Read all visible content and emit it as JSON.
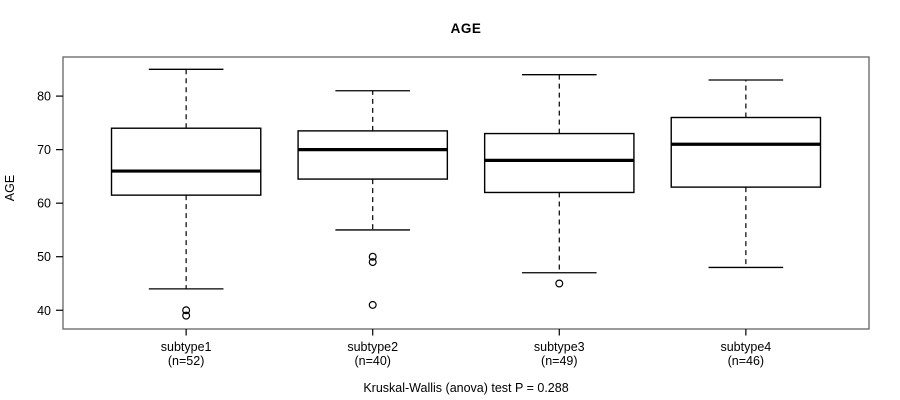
{
  "chart_data": {
    "type": "boxplot",
    "title": "AGE",
    "ylabel": "AGE",
    "footer": "Kruskal-Wallis (anova) test P = 0.288",
    "y_ticks": [
      40,
      50,
      60,
      70,
      80
    ],
    "ylim": [
      36.5,
      87.3
    ],
    "xlim": [
      0.34,
      4.66
    ],
    "grid": false,
    "legend": "none",
    "colors": {
      "box_fill": "#ffffff",
      "box_stroke": "#000000",
      "median_stroke": "#000000",
      "whisker_stroke": "#000000",
      "outlier_stroke": "#000000",
      "plot_border": "#6f6f6f",
      "text": "#000000"
    },
    "groups": [
      {
        "position": 1,
        "label": "subtype1",
        "n_label": "(n=52)",
        "whisker_low": 44,
        "q1": 61.5,
        "median": 66,
        "q3": 74,
        "whisker_high": 85,
        "outliers": [
          40,
          39
        ]
      },
      {
        "position": 2,
        "label": "subtype2",
        "n_label": "(n=40)",
        "whisker_low": 55,
        "q1": 64.5,
        "median": 70,
        "q3": 73.5,
        "whisker_high": 81,
        "outliers": [
          50,
          49,
          41
        ]
      },
      {
        "position": 3,
        "label": "subtype3",
        "n_label": "(n=49)",
        "whisker_low": 47,
        "q1": 62,
        "median": 68,
        "q3": 73,
        "whisker_high": 84,
        "outliers": [
          45
        ]
      },
      {
        "position": 4,
        "label": "subtype4",
        "n_label": "(n=46)",
        "whisker_low": 48,
        "q1": 63,
        "median": 71,
        "q3": 76,
        "whisker_high": 83,
        "outliers": []
      }
    ]
  }
}
